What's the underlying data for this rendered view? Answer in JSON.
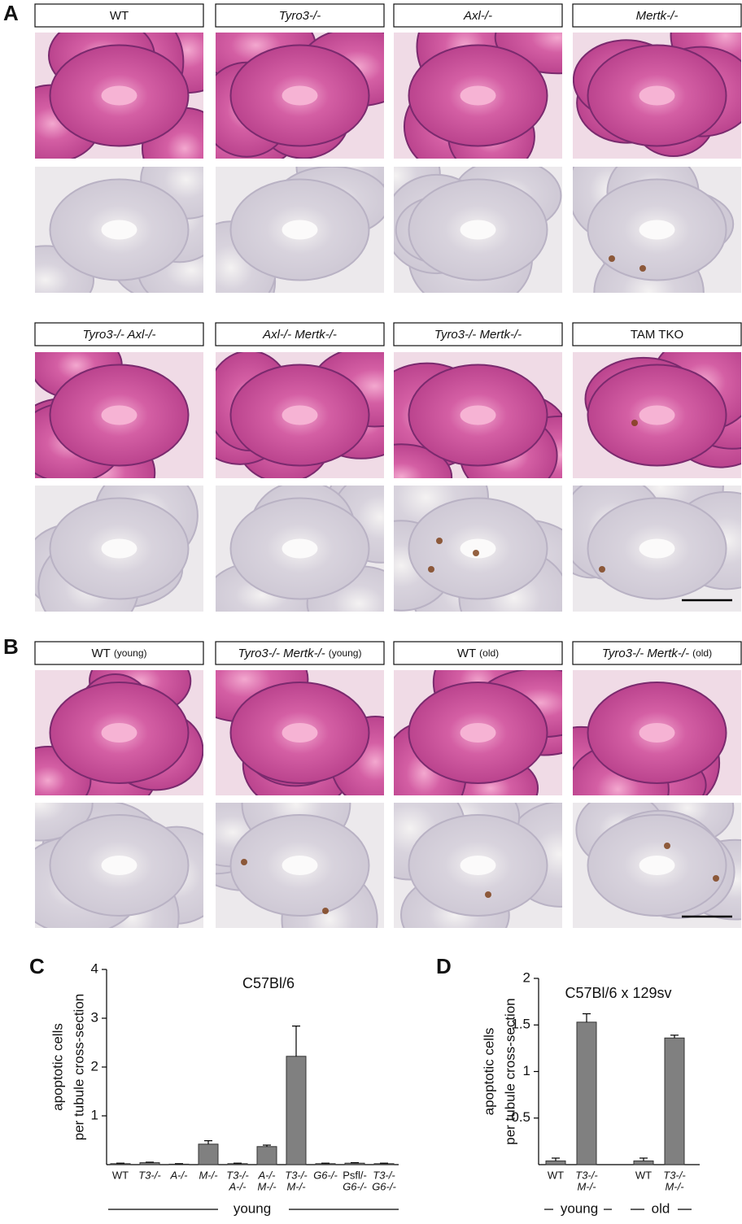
{
  "panel_labels": [
    "A",
    "B",
    "C",
    "D"
  ],
  "panel_A": {
    "rows": [
      [
        "WT",
        "Tyro3-/-",
        "Axl-/-",
        "Mertk-/-"
      ],
      [
        "Tyro3-/- Axl-/-",
        "Axl-/- Mertk-/-",
        "Tyro3-/- Mertk-/-",
        "TAM TKO"
      ]
    ]
  },
  "panel_B": {
    "columns": [
      {
        "genotype": "WT",
        "age": "(young)"
      },
      {
        "genotype": "Tyro3-/- Mertk-/-",
        "age": "(young)"
      },
      {
        "genotype": "WT",
        "age": "(old)"
      },
      {
        "genotype": "Tyro3-/- Mertk-/-",
        "age": "(old)"
      }
    ]
  },
  "chart_data": [
    {
      "type": "bar",
      "title": "C57Bl/6",
      "ylabel": [
        "apoptotic cells",
        "per tubule cross-section"
      ],
      "categories": [
        [
          "WT"
        ],
        [
          "T3-/-"
        ],
        [
          "A-/-"
        ],
        [
          "M-/-"
        ],
        [
          "T3-/-",
          "A-/-"
        ],
        [
          "A-/-",
          "M-/-"
        ],
        [
          "T3-/-",
          "M-/-"
        ],
        [
          "G6-/-"
        ],
        [
          "Psfl/-",
          "G6-/-"
        ],
        [
          "T3-/-",
          "G6-/-"
        ]
      ],
      "values": [
        0.02,
        0.04,
        0.01,
        0.42,
        0.02,
        0.37,
        2.22,
        0.02,
        0.03,
        0.02
      ],
      "errors": [
        0.01,
        0.01,
        0.01,
        0.07,
        0.01,
        0.03,
        0.62,
        0.01,
        0.01,
        0.01
      ],
      "groups": [
        "young"
      ],
      "color": "#808080",
      "ylim": [
        0,
        4
      ],
      "yticks": [
        1,
        2,
        3,
        4
      ]
    },
    {
      "type": "bar",
      "title": "C57Bl/6 x 129sv",
      "ylabel": [
        "apoptotic cells",
        "per tubule cross-section"
      ],
      "categories": [
        [
          "WT"
        ],
        [
          "T3-/-",
          "M-/-"
        ],
        [
          "WT"
        ],
        [
          "T3-/-",
          "M-/-"
        ]
      ],
      "values": [
        0.04,
        1.53,
        0.04,
        1.36
      ],
      "errors": [
        0.03,
        0.09,
        0.03,
        0.03
      ],
      "groups": [
        "young",
        "old"
      ],
      "color": "#808080",
      "ylim": [
        0,
        2
      ],
      "yticks": [
        0.5,
        1,
        1.5,
        2
      ]
    }
  ]
}
